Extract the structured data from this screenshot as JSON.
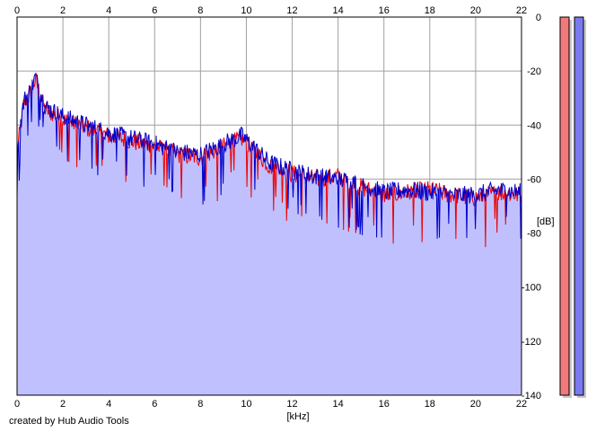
{
  "chart_data": {
    "type": "area",
    "xlabel": "[kHz]",
    "ylabel": "[dB]",
    "xlim": [
      0,
      22
    ],
    "ylim": [
      -140,
      0
    ],
    "x_ticks": [
      "0",
      "2",
      "4",
      "6",
      "8",
      "10",
      "12",
      "14",
      "16",
      "18",
      "20",
      "22"
    ],
    "y_ticks": [
      "0",
      "-20",
      "-40",
      "-60",
      "-80",
      "-100",
      "-120",
      "-140"
    ],
    "grid": true,
    "series": [
      {
        "color": "#ee0000",
        "x": [
          0,
          0.3,
          0.6,
          0.8,
          1.2,
          2,
          3,
          4,
          5,
          6,
          7,
          8,
          9,
          9.8,
          11,
          12,
          13,
          14,
          15,
          16,
          17,
          18,
          19,
          20,
          21,
          22
        ],
        "y": [
          -50,
          -32,
          -28,
          -23,
          -34,
          -38,
          -41,
          -44,
          -46,
          -48,
          -51,
          -52,
          -48,
          -45,
          -55,
          -58,
          -60,
          -59,
          -63,
          -66,
          -65,
          -64,
          -66,
          -67,
          -65,
          -66
        ]
      },
      {
        "color": "#0000cc",
        "x": [
          0,
          0.3,
          0.6,
          0.8,
          1.2,
          2,
          3,
          4,
          5,
          6,
          7,
          8,
          9,
          9.8,
          11,
          12,
          13,
          14,
          15,
          16,
          17,
          18,
          19,
          20,
          21,
          22
        ],
        "y": [
          -48,
          -31,
          -27,
          -22,
          -33,
          -37,
          -40,
          -43,
          -45,
          -47,
          -50,
          -51,
          -47,
          -44,
          -54,
          -57,
          -59,
          -60,
          -62,
          -65,
          -64,
          -65,
          -66,
          -66,
          -64,
          -65
        ]
      }
    ],
    "level_meters": [
      {
        "color": "#f07a7a",
        "level_db": 0
      },
      {
        "color": "#7a7af0",
        "level_db": 0
      }
    ]
  },
  "credit": "created by Hub Audio Tools"
}
